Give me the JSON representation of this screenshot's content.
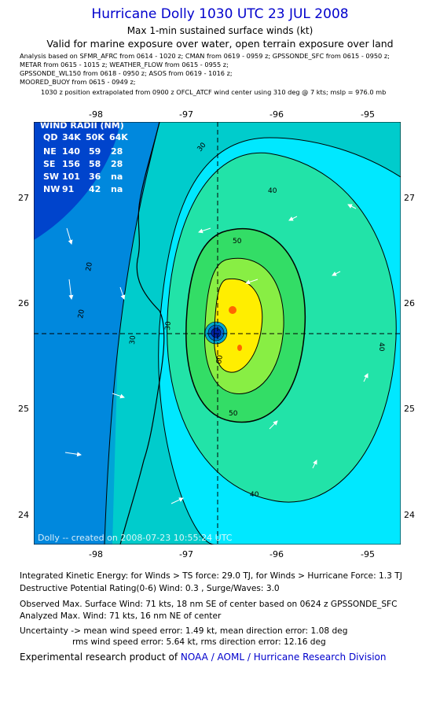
{
  "header": {
    "title": "Hurricane Dolly 1030 UTC 23 JUL 2008",
    "subtitle": "Max 1-min sustained surface winds (kt)",
    "valid_note": "Valid for marine exposure over water, open terrain exposure over land",
    "analysis_lines": [
      "Analysis based on   SFMR_AFRC from 0614 - 1020 z;  CMAN from 0619 - 0959 z;  GPSSONDE_SFC from 0615 - 0950 z;",
      "METAR from 0615 - 1015 z;  WEATHER_FLOW from 0615 - 0955 z;",
      "GPSSONDE_WL150 from 0618 - 0950 z;  ASOS from 0619 - 1016 z;",
      "MOORED_BUOY from 0615 - 0949 z;"
    ],
    "position_note": "1030 z position extrapolated from 0900 z OFCL_ATCF wind center using 310 deg @ 7 kts; mslp = 976.0 mb"
  },
  "map": {
    "lon_ticks": [
      "-98",
      "-97",
      "-96",
      "-95"
    ],
    "lat_ticks": [
      "27",
      "26",
      "25",
      "24"
    ],
    "lon_range": [
      -98.55,
      -94.95
    ],
    "lat_range": [
      23.7,
      27.7
    ],
    "center": {
      "lon": -96.65,
      "lat": 25.72
    },
    "contour_labels": [
      "20",
      "30",
      "30",
      "40",
      "40",
      "40",
      "50",
      "50",
      "60",
      "30",
      "20"
    ],
    "wind_radii": {
      "title": "WIND RADII (NM)",
      "header": [
        "QD",
        "34K",
        "50K",
        "64K"
      ],
      "rows": [
        [
          "NE",
          "140",
          "59",
          "28"
        ],
        [
          "SE",
          "156",
          "58",
          "28"
        ],
        [
          "SW",
          "101",
          "36",
          "na"
        ],
        [
          "NW",
          "91",
          "42",
          "na"
        ]
      ]
    },
    "credit": "Dolly -- created on 2008-07-23 10:55:24 UTC",
    "colors": {
      "ocean_light": "#00e8ff",
      "band_30": "#00cccc",
      "band_20": "#0088dd",
      "land": "#0044cc",
      "band_50": "#33dd66",
      "band_60": "#88ee44",
      "core": "#ffee00",
      "max": "#ff6600"
    }
  },
  "stats": {
    "ike": "Integrated Kinetic Energy:  for Winds > TS force: 29.0 TJ,  for Winds > Hurricane Force: 1.3 TJ",
    "dpr": "Destructive Potential Rating(0-6)   Wind: 0.3 , Surge/Waves: 3.0",
    "observed": "Observed Max. Surface Wind: 71 kts, 18 nm SE of center based on 0624 z GPSSONDE_SFC",
    "analyzed": "Analyzed Max. Wind: 71 kts, 16 nm NE of center",
    "uncertainty_1": "Uncertainty -> mean wind speed error: 1.49 kt,   mean direction error: 1.08 deg",
    "uncertainty_2": "rms wind speed error: 5.64 kt,   rms direction error: 12.16 deg"
  },
  "footer": {
    "prefix": "Experimental research product of ",
    "org": "NOAA / AOML / Hurricane Research Division"
  }
}
